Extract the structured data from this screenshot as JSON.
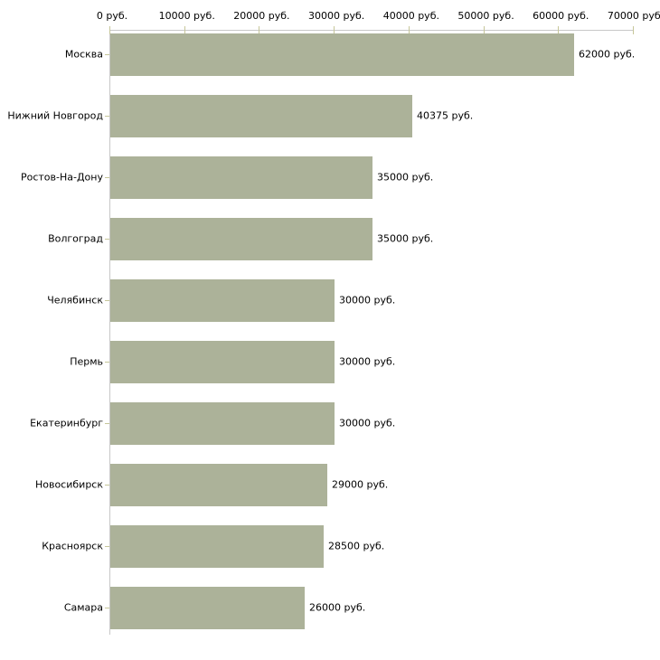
{
  "chart_data": {
    "type": "bar",
    "orientation": "horizontal",
    "title": "",
    "categories": [
      "Москва",
      "Нижний Новгород",
      "Ростов-На-Дону",
      "Волгоград",
      "Челябинск",
      "Пермь",
      "Екатеринбург",
      "Новосибирск",
      "Красноярск",
      "Самара"
    ],
    "values": [
      62000,
      40375,
      35000,
      35000,
      30000,
      30000,
      30000,
      29000,
      28500,
      26000
    ],
    "value_labels": [
      "62000 руб.",
      "40375 руб.",
      "35000 руб.",
      "35000 руб.",
      "30000 руб.",
      "30000 руб.",
      "30000 руб.",
      "29000 руб.",
      "28500 руб.",
      "26000 руб."
    ],
    "x_axis": {
      "position": "top",
      "min": 0,
      "max": 70000,
      "tick_interval": 10000,
      "tick_values": [
        0,
        10000,
        20000,
        30000,
        40000,
        50000,
        60000,
        70000
      ],
      "tick_labels": [
        "0 руб.",
        "10000 руб.",
        "20000 руб.",
        "30000 руб.",
        "40000 руб.",
        "50000 руб.",
        "60000 руб.",
        "70000 руб."
      ]
    },
    "grid": false,
    "legend": false,
    "colors": {
      "bar_fill": "#ACB299",
      "axis_line": "#C8C8C8",
      "tick_mark": "#C6C699",
      "text": "#000000",
      "background": "#FFFFFF"
    }
  }
}
